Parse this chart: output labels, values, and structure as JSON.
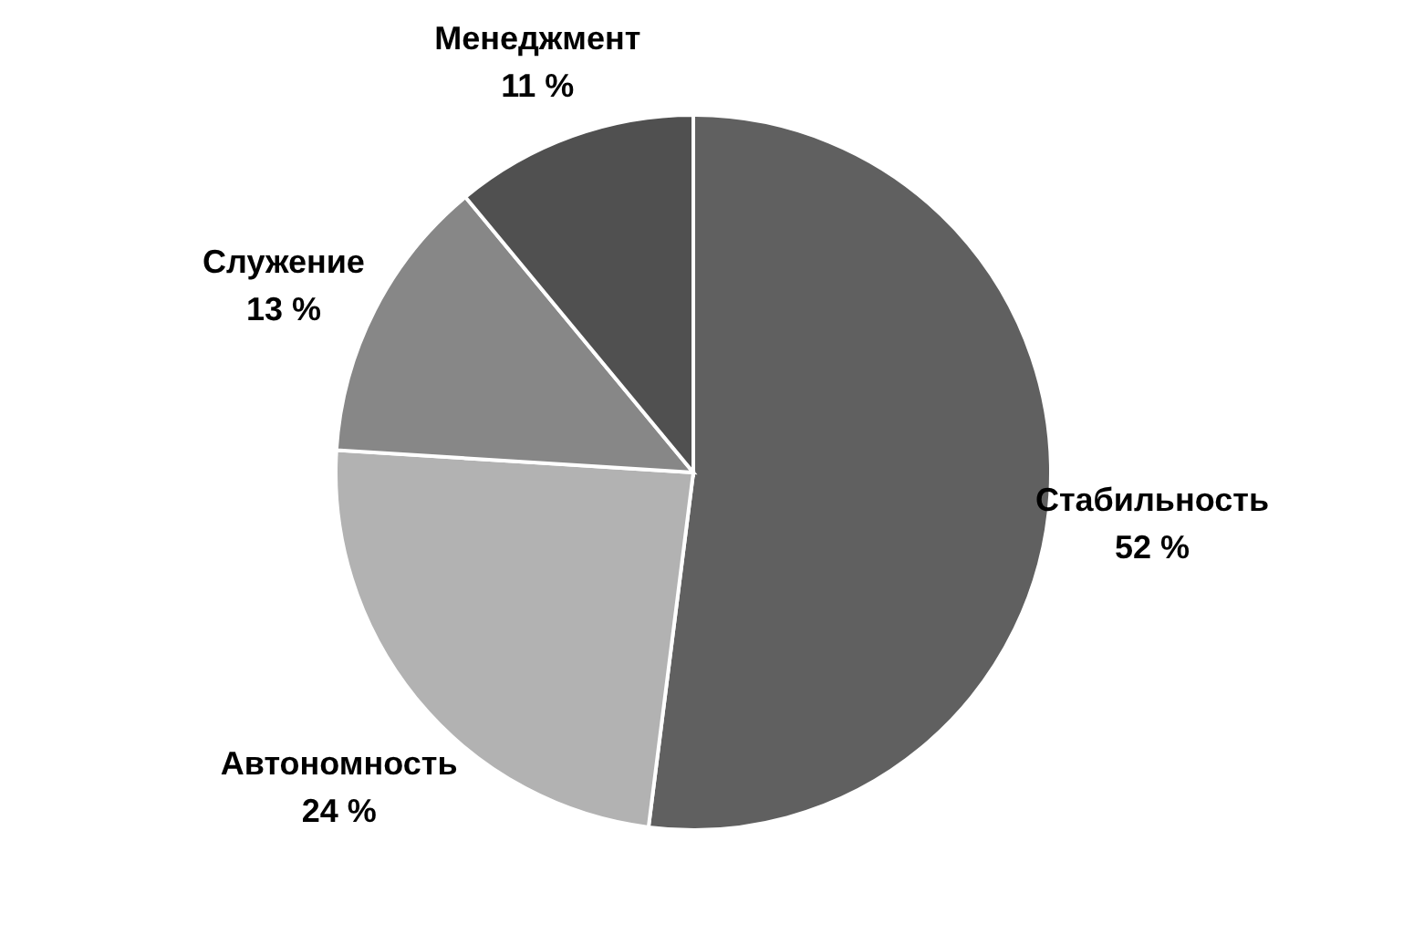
{
  "chart_data": {
    "type": "pie",
    "categories": [
      "Стабильность",
      "Автономность",
      "Служение",
      "Менеджмент"
    ],
    "values": [
      52,
      24,
      13,
      11
    ],
    "value_labels": [
      "52 %",
      "24 %",
      "13 %",
      "11 %"
    ],
    "colors": [
      "#606060",
      "#b2b2b2",
      "#878787",
      "#505050"
    ]
  }
}
